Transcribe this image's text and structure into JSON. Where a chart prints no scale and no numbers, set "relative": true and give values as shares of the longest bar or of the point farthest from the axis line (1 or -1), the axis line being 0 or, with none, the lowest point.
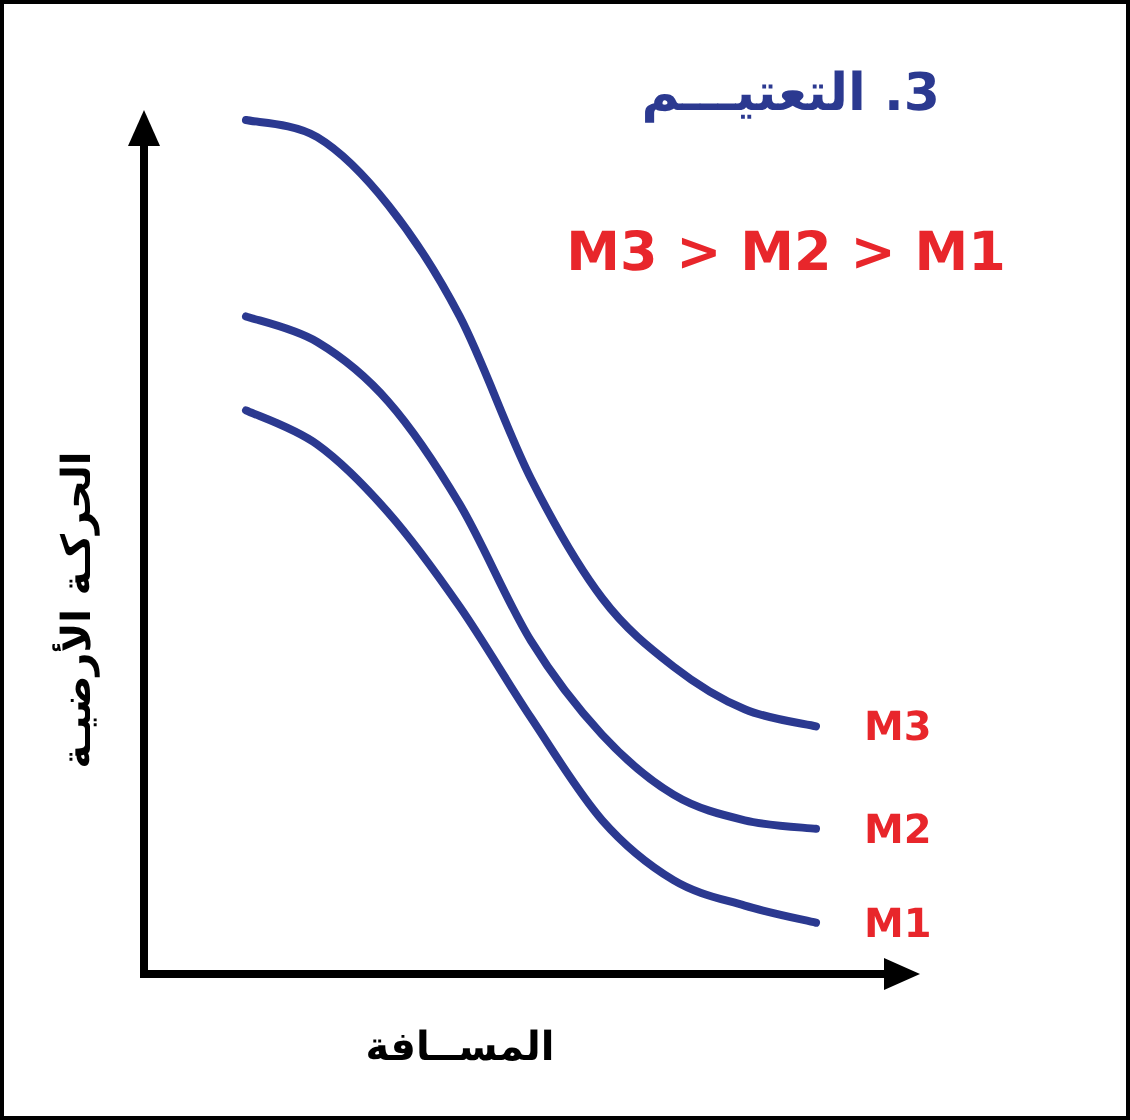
{
  "chart_data": {
    "type": "line",
    "relative": true,
    "title": "3. التعتيـــم",
    "xlabel": "المســافة",
    "ylabel": "الحركـة الأرضيـة",
    "annotations": [
      "M3 > M2 > M1"
    ],
    "categories": [
      null,
      null,
      null,
      null,
      null,
      null,
      null,
      null,
      null
    ],
    "series": [
      {
        "name": "M3",
        "color": "#2b3990",
        "values": [
          1,
          0.98,
          0.9,
          0.77,
          0.58,
          0.44,
          0.36,
          0.31,
          0.29
        ]
      },
      {
        "name": "M2",
        "color": "#2b3990",
        "values": [
          0.77,
          0.74,
          0.67,
          0.55,
          0.39,
          0.28,
          0.21,
          0.18,
          0.17
        ]
      },
      {
        "name": "M1",
        "color": "#2b3990",
        "values": [
          0.66,
          0.62,
          0.54,
          0.43,
          0.3,
          0.18,
          0.11,
          0.08,
          0.06
        ]
      }
    ]
  }
}
